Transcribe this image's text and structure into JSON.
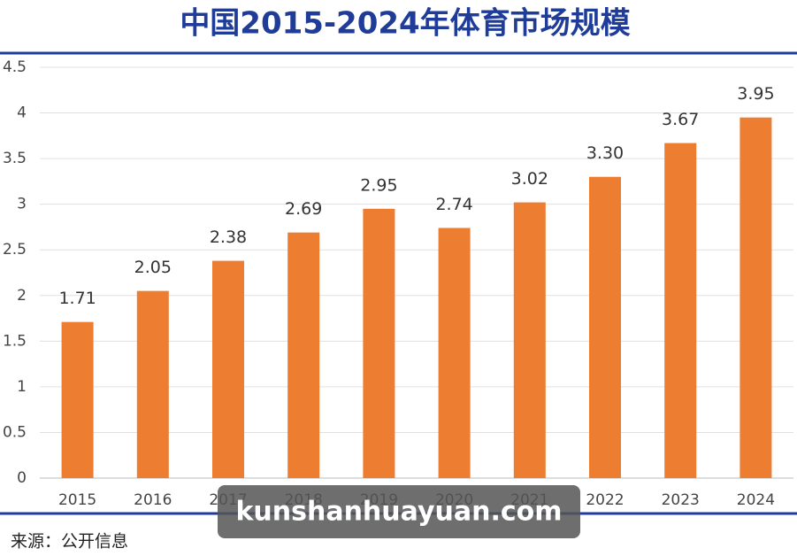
{
  "chart_data": {
    "type": "bar",
    "title": "中国2015-2024年体育市场规模",
    "categories": [
      "2015",
      "2016",
      "2017",
      "2018",
      "2019",
      "2020",
      "2021",
      "2022",
      "2023",
      "2024"
    ],
    "values": [
      1.71,
      2.05,
      2.38,
      2.69,
      2.95,
      2.74,
      3.02,
      3.3,
      3.67,
      3.95
    ],
    "value_labels": [
      "1.71",
      "2.05",
      "2.38",
      "2.69",
      "2.95",
      "2.74",
      "3.02",
      "3.30",
      "3.67",
      "3.95"
    ],
    "color": "#ed7d31",
    "ylim": [
      0,
      4.5
    ],
    "yticks": [
      0,
      0.5,
      1,
      1.5,
      2,
      2.5,
      3,
      3.5,
      4,
      4.5
    ],
    "grid": true,
    "source": "来源：公开信息",
    "watermark": "kunshanhuayuan.com"
  }
}
